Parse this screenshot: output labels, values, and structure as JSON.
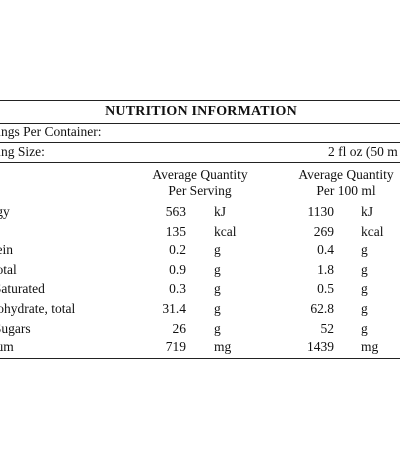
{
  "title": "NUTRITION INFORMATION",
  "servings_per_container_label": "rvings Per Container:",
  "serving_size_label": "rving Size:",
  "serving_size_value": "2 fl oz (50 m",
  "columns": {
    "per_serving_line1": "Average Quantity",
    "per_serving_line2": "Per Serving",
    "per_100_line1": "Average Quantity",
    "per_100_line2": "Per 100 ml"
  },
  "rows": [
    {
      "label": "ergy",
      "serv": "563",
      "serv_unit": "kJ",
      "hund": "1130",
      "hund_unit": "kJ"
    },
    {
      "label": "",
      "serv": "135",
      "serv_unit": "kcal",
      "hund": "269",
      "hund_unit": "kcal"
    },
    {
      "label": "otein",
      "serv": "0.2",
      "serv_unit": "g",
      "hund": "0.4",
      "hund_unit": "g"
    },
    {
      "label": ", total",
      "serv": "0.9",
      "serv_unit": "g",
      "hund": "1.8",
      "hund_unit": "g"
    },
    {
      "label": "-   Saturated",
      "serv": "0.3",
      "serv_unit": "g",
      "hund": "0.5",
      "hund_unit": "g"
    },
    {
      "label": "rbohydrate, total",
      "serv": "31.4",
      "serv_unit": "g",
      "hund": "62.8",
      "hund_unit": "g"
    },
    {
      "label": "-   Sugars",
      "serv": "26",
      "serv_unit": "g",
      "hund": "52",
      "hund_unit": "g"
    },
    {
      "label": "dium",
      "serv": "719",
      "serv_unit": "mg",
      "hund": "1439",
      "hund_unit": "mg"
    }
  ]
}
